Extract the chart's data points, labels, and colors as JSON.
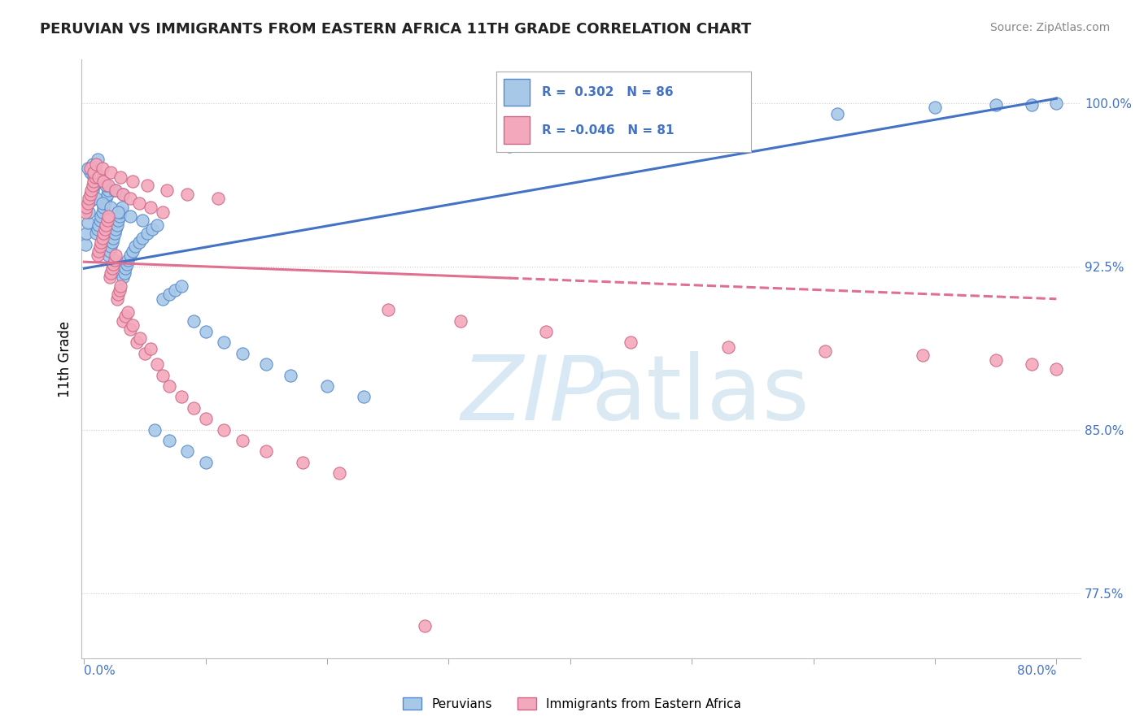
{
  "title": "PERUVIAN VS IMMIGRANTS FROM EASTERN AFRICA 11TH GRADE CORRELATION CHART",
  "source": "Source: ZipAtlas.com",
  "ylabel": "11th Grade",
  "ylabels": [
    "77.5%",
    "85.0%",
    "92.5%",
    "100.0%"
  ],
  "yticks": [
    0.775,
    0.85,
    0.925,
    1.0
  ],
  "ylim": [
    0.745,
    1.02
  ],
  "xlim": [
    -0.002,
    0.82
  ],
  "legend_blue": {
    "R": 0.302,
    "N": 86
  },
  "legend_pink": {
    "R": -0.046,
    "N": 81
  },
  "blue_color": "#A8C8E8",
  "pink_color": "#F4A8BC",
  "blue_edge_color": "#5588CC",
  "pink_edge_color": "#CC6688",
  "blue_line_color": "#4472C4",
  "pink_line_color": "#E07090",
  "tick_label_color": "#4472C4",
  "background_color": "#FFFFFF",
  "peruvians_x": [
    0.001,
    0.002,
    0.003,
    0.004,
    0.005,
    0.006,
    0.007,
    0.008,
    0.009,
    0.01,
    0.01,
    0.011,
    0.012,
    0.013,
    0.014,
    0.015,
    0.016,
    0.017,
    0.018,
    0.019,
    0.02,
    0.02,
    0.021,
    0.022,
    0.023,
    0.024,
    0.025,
    0.026,
    0.027,
    0.028,
    0.029,
    0.03,
    0.031,
    0.032,
    0.033,
    0.034,
    0.035,
    0.036,
    0.038,
    0.04,
    0.042,
    0.045,
    0.048,
    0.052,
    0.056,
    0.06,
    0.065,
    0.07,
    0.075,
    0.08,
    0.09,
    0.1,
    0.115,
    0.13,
    0.15,
    0.17,
    0.2,
    0.23,
    0.005,
    0.008,
    0.012,
    0.018,
    0.025,
    0.032,
    0.01,
    0.015,
    0.022,
    0.028,
    0.038,
    0.048,
    0.058,
    0.07,
    0.085,
    0.1,
    0.35,
    0.42,
    0.52,
    0.62,
    0.7,
    0.75,
    0.78,
    0.8,
    0.003,
    0.007,
    0.011
  ],
  "peruvians_y": [
    0.935,
    0.94,
    0.945,
    0.95,
    0.955,
    0.958,
    0.96,
    0.962,
    0.963,
    0.964,
    0.94,
    0.942,
    0.944,
    0.946,
    0.948,
    0.95,
    0.952,
    0.954,
    0.956,
    0.958,
    0.96,
    0.93,
    0.932,
    0.934,
    0.936,
    0.938,
    0.94,
    0.942,
    0.944,
    0.946,
    0.948,
    0.95,
    0.952,
    0.92,
    0.922,
    0.924,
    0.926,
    0.928,
    0.93,
    0.932,
    0.934,
    0.936,
    0.938,
    0.94,
    0.942,
    0.944,
    0.91,
    0.912,
    0.914,
    0.916,
    0.9,
    0.895,
    0.89,
    0.885,
    0.88,
    0.875,
    0.87,
    0.865,
    0.968,
    0.966,
    0.964,
    0.962,
    0.96,
    0.958,
    0.956,
    0.954,
    0.952,
    0.95,
    0.948,
    0.946,
    0.85,
    0.845,
    0.84,
    0.835,
    0.98,
    0.985,
    0.99,
    0.995,
    0.998,
    0.999,
    0.999,
    1.0,
    0.97,
    0.972,
    0.974
  ],
  "eastern_africa_x": [
    0.001,
    0.002,
    0.003,
    0.004,
    0.005,
    0.006,
    0.007,
    0.008,
    0.009,
    0.01,
    0.011,
    0.012,
    0.013,
    0.014,
    0.015,
    0.016,
    0.017,
    0.018,
    0.019,
    0.02,
    0.021,
    0.022,
    0.023,
    0.024,
    0.025,
    0.026,
    0.027,
    0.028,
    0.029,
    0.03,
    0.032,
    0.034,
    0.036,
    0.038,
    0.04,
    0.043,
    0.046,
    0.05,
    0.055,
    0.06,
    0.065,
    0.07,
    0.08,
    0.09,
    0.1,
    0.115,
    0.13,
    0.15,
    0.18,
    0.21,
    0.005,
    0.008,
    0.012,
    0.016,
    0.02,
    0.026,
    0.032,
    0.038,
    0.045,
    0.055,
    0.065,
    0.01,
    0.015,
    0.022,
    0.03,
    0.04,
    0.052,
    0.068,
    0.085,
    0.11,
    0.25,
    0.31,
    0.38,
    0.45,
    0.53,
    0.61,
    0.69,
    0.75,
    0.78,
    0.8,
    0.28
  ],
  "eastern_africa_y": [
    0.95,
    0.952,
    0.954,
    0.956,
    0.958,
    0.96,
    0.962,
    0.964,
    0.966,
    0.968,
    0.93,
    0.932,
    0.934,
    0.936,
    0.938,
    0.94,
    0.942,
    0.944,
    0.946,
    0.948,
    0.92,
    0.922,
    0.924,
    0.926,
    0.928,
    0.93,
    0.91,
    0.912,
    0.914,
    0.916,
    0.9,
    0.902,
    0.904,
    0.896,
    0.898,
    0.89,
    0.892,
    0.885,
    0.887,
    0.88,
    0.875,
    0.87,
    0.865,
    0.86,
    0.855,
    0.85,
    0.845,
    0.84,
    0.835,
    0.83,
    0.97,
    0.968,
    0.966,
    0.964,
    0.962,
    0.96,
    0.958,
    0.956,
    0.954,
    0.952,
    0.95,
    0.972,
    0.97,
    0.968,
    0.966,
    0.964,
    0.962,
    0.96,
    0.958,
    0.956,
    0.905,
    0.9,
    0.895,
    0.89,
    0.888,
    0.886,
    0.884,
    0.882,
    0.88,
    0.878,
    0.76
  ]
}
